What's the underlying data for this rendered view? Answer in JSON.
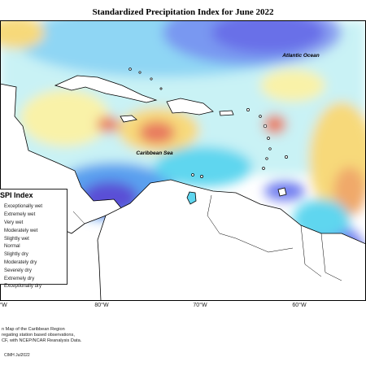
{
  "title": "Standardized Precipitation Index for June 2022",
  "map_labels": {
    "atlantic": "Atlantic Ocean",
    "caribbean": "Caribbean Sea"
  },
  "legend": {
    "title": "SPI Index",
    "items": [
      {
        "label": "Exceptionally wet",
        "color": "#5a4fd6"
      },
      {
        "label": "Extremely wet",
        "color": "#6f7df0"
      },
      {
        "label": "Very wet",
        "color": "#5aa0ef"
      },
      {
        "label": "Moderately wet",
        "color": "#5fd6ef"
      },
      {
        "label": "Slightly wet",
        "color": "#aef0f6"
      },
      {
        "label": "Normal",
        "color": "#ffffff"
      },
      {
        "label": "Slightly dry",
        "color": "#f9f2a8"
      },
      {
        "label": "Moderately dry",
        "color": "#f7d97a"
      },
      {
        "label": "Severely dry",
        "color": "#f0a96a"
      },
      {
        "label": "Extremely dry",
        "color": "#e87a5e"
      },
      {
        "label": "Exceptionally dry",
        "color": "#d5475a"
      }
    ]
  },
  "longitude_labels": [
    "°W",
    "80°W",
    "70°W",
    "60°W"
  ],
  "footer": {
    "lines": [
      "n Map of the Caribbean Region",
      "regating station based observations,",
      "CF, with NCEP/NCAR Reanalysis Data."
    ],
    "credit_date": "CIMH Jul2022"
  },
  "colors": {
    "land": "#ffffff",
    "coast": "#000000",
    "ocean_normal": "#ffffff"
  }
}
